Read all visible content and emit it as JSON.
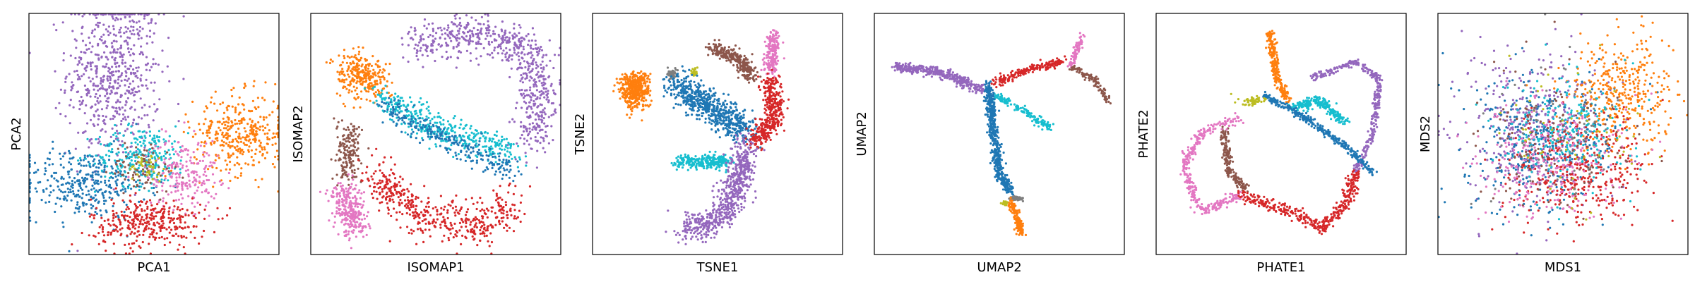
{
  "chart_data": [
    {
      "type": "scatter",
      "xlabel": "PCA1",
      "ylabel": "PCA2",
      "axis_ticks": false,
      "grid": false,
      "groups": [
        {
          "color": "#9467bd",
          "center": [
            -0.35,
            0.55
          ],
          "spread": [
            0.45,
            0.85
          ],
          "n": 620
        },
        {
          "color": "#1f77b4",
          "center": [
            -0.6,
            -0.45
          ],
          "spread": [
            0.6,
            0.35
          ],
          "n": 360
        },
        {
          "color": "#17becf",
          "center": [
            -0.1,
            -0.2
          ],
          "spread": [
            0.45,
            0.3
          ],
          "n": 260
        },
        {
          "color": "#ff7f0e",
          "center": [
            0.75,
            0.0
          ],
          "spread": [
            0.45,
            0.4
          ],
          "n": 360
        },
        {
          "color": "#e377c2",
          "center": [
            0.25,
            -0.35
          ],
          "spread": [
            0.35,
            0.35
          ],
          "n": 220
        },
        {
          "color": "#d62728",
          "center": [
            -0.05,
            -0.8
          ],
          "spread": [
            0.55,
            0.25
          ],
          "n": 340
        },
        {
          "color": "#8c564b",
          "center": [
            -0.1,
            -0.3
          ],
          "spread": [
            0.3,
            0.25
          ],
          "n": 80
        },
        {
          "color": "#bcbd22",
          "center": [
            -0.05,
            -0.3
          ],
          "spread": [
            0.2,
            0.15
          ],
          "n": 40
        }
      ]
    },
    {
      "type": "scatter",
      "xlabel": "ISOMAP1",
      "ylabel": "ISOMAP2",
      "axis_ticks": false,
      "grid": false,
      "groups": [
        {
          "color": "#9467bd",
          "path": [
            [
              -0.2,
              0.8
            ],
            [
              0.3,
              0.9
            ],
            [
              0.75,
              0.8
            ],
            [
              0.9,
              0.45
            ],
            [
              0.85,
              -0.1
            ]
          ],
          "width": 0.2,
          "n": 650
        },
        {
          "color": "#ff7f0e",
          "path": [
            [
              -0.75,
              0.55
            ],
            [
              -0.65,
              0.55
            ],
            [
              -0.55,
              0.45
            ]
          ],
          "width": 0.2,
          "n": 280
        },
        {
          "color": "#17becf",
          "path": [
            [
              -0.5,
              0.35
            ],
            [
              -0.1,
              0.1
            ],
            [
              0.35,
              -0.05
            ],
            [
              0.7,
              -0.2
            ]
          ],
          "width": 0.15,
          "n": 380
        },
        {
          "color": "#1f77b4",
          "path": [
            [
              -0.45,
              0.25
            ],
            [
              0.1,
              -0.05
            ],
            [
              0.7,
              -0.35
            ]
          ],
          "width": 0.12,
          "n": 260
        },
        {
          "color": "#8c564b",
          "path": [
            [
              -0.75,
              0.05
            ],
            [
              -0.75,
              -0.4
            ]
          ],
          "width": 0.12,
          "n": 170
        },
        {
          "color": "#e377c2",
          "path": [
            [
              -0.8,
              -0.5
            ],
            [
              -0.7,
              -0.85
            ]
          ],
          "width": 0.15,
          "n": 280
        },
        {
          "color": "#d62728",
          "path": [
            [
              -0.55,
              -0.35
            ],
            [
              -0.1,
              -0.75
            ],
            [
              0.4,
              -0.85
            ],
            [
              0.65,
              -0.6
            ]
          ],
          "width": 0.2,
          "n": 480
        }
      ]
    },
    {
      "type": "scatter",
      "xlabel": "TSNE1",
      "ylabel": "TSNE2",
      "axis_ticks": false,
      "grid": false,
      "groups": [
        {
          "color": "#ff7f0e",
          "center": [
            -0.72,
            0.4
          ],
          "spread": [
            0.14,
            0.18
          ],
          "n": 450
        },
        {
          "color": "#7f7f7f",
          "center": [
            -0.4,
            0.54
          ],
          "spread": [
            0.05,
            0.05
          ],
          "n": 40
        },
        {
          "color": "#bcbd22",
          "center": [
            -0.2,
            0.56
          ],
          "spread": [
            0.03,
            0.05
          ],
          "n": 25
        },
        {
          "color": "#1f77b4",
          "path": [
            [
              -0.35,
              0.45
            ],
            [
              0.0,
              0.2
            ],
            [
              0.25,
              0.02
            ]
          ],
          "width": 0.16,
          "n": 650
        },
        {
          "color": "#17becf",
          "path": [
            [
              -0.35,
              -0.25
            ],
            [
              0.1,
              -0.25
            ]
          ],
          "width": 0.07,
          "n": 260
        },
        {
          "color": "#8c564b",
          "path": [
            [
              -0.05,
              0.78
            ],
            [
              0.2,
              0.68
            ],
            [
              0.3,
              0.5
            ]
          ],
          "width": 0.07,
          "n": 280
        },
        {
          "color": "#e377c2",
          "path": [
            [
              0.5,
              0.9
            ],
            [
              0.45,
              0.55
            ]
          ],
          "width": 0.07,
          "n": 200
        },
        {
          "color": "#d62728",
          "path": [
            [
              0.45,
              0.5
            ],
            [
              0.5,
              0.15
            ],
            [
              0.3,
              -0.1
            ]
          ],
          "width": 0.1,
          "n": 380
        },
        {
          "color": "#9467bd",
          "path": [
            [
              0.25,
              -0.1
            ],
            [
              0.15,
              -0.5
            ],
            [
              0.0,
              -0.8
            ],
            [
              -0.3,
              -0.85
            ]
          ],
          "width": 0.14,
          "n": 650
        }
      ]
    },
    {
      "type": "scatter",
      "xlabel": "UMAP2",
      "ylabel": "UMAP2",
      "axis_ticks": false,
      "grid": false,
      "groups": [
        {
          "color": "#9467bd",
          "path": [
            [
              -0.9,
              0.6
            ],
            [
              -0.55,
              0.57
            ],
            [
              -0.15,
              0.4
            ]
          ],
          "width": 0.05,
          "n": 380
        },
        {
          "color": "#d62728",
          "path": [
            [
              -0.05,
              0.45
            ],
            [
              0.3,
              0.6
            ],
            [
              0.55,
              0.65
            ]
          ],
          "width": 0.04,
          "n": 200
        },
        {
          "color": "#e377c2",
          "path": [
            [
              0.72,
              0.9
            ],
            [
              0.62,
              0.6
            ]
          ],
          "width": 0.03,
          "n": 90
        },
        {
          "color": "#8c564b",
          "path": [
            [
              0.62,
              0.6
            ],
            [
              0.82,
              0.5
            ],
            [
              0.95,
              0.3
            ]
          ],
          "width": 0.03,
          "n": 110
        },
        {
          "color": "#17becf",
          "path": [
            [
              -0.05,
              0.35
            ],
            [
              0.15,
              0.25
            ],
            [
              0.45,
              0.05
            ]
          ],
          "width": 0.04,
          "n": 150
        },
        {
          "color": "#1f77b4",
          "path": [
            [
              -0.1,
              0.45
            ],
            [
              -0.05,
              0.0
            ],
            [
              0.0,
              -0.35
            ],
            [
              0.1,
              -0.55
            ]
          ],
          "width": 0.05,
          "n": 500
        },
        {
          "color": "#7f7f7f",
          "center": [
            0.15,
            -0.58
          ],
          "spread": [
            0.07,
            0.025
          ],
          "n": 60
        },
        {
          "color": "#bcbd22",
          "center": [
            0.05,
            -0.62
          ],
          "spread": [
            0.03,
            0.02
          ],
          "n": 25
        },
        {
          "color": "#ff7f0e",
          "path": [
            [
              0.1,
              -0.62
            ],
            [
              0.2,
              -0.9
            ]
          ],
          "width": 0.035,
          "n": 160
        }
      ]
    },
    {
      "type": "scatter",
      "xlabel": "PHATE1",
      "ylabel": "PHATE2",
      "axis_ticks": false,
      "grid": false,
      "groups": [
        {
          "color": "#ff7f0e",
          "path": [
            [
              -0.1,
              0.92
            ],
            [
              -0.05,
              0.55
            ],
            [
              0.05,
              0.3
            ]
          ],
          "width": 0.04,
          "n": 230
        },
        {
          "color": "#9467bd",
          "path": [
            [
              0.25,
              0.5
            ],
            [
              0.65,
              0.65
            ],
            [
              0.85,
              0.5
            ],
            [
              0.8,
              0.0
            ],
            [
              0.65,
              -0.35
            ]
          ],
          "width": 0.035,
          "n": 320
        },
        {
          "color": "#17becf",
          "path": [
            [
              0.1,
              0.25
            ],
            [
              0.35,
              0.3
            ],
            [
              0.55,
              0.1
            ]
          ],
          "width": 0.05,
          "n": 230
        },
        {
          "color": "#1f77b4",
          "path": [
            [
              -0.15,
              0.35
            ],
            [
              0.2,
              0.15
            ],
            [
              0.55,
              -0.1
            ],
            [
              0.8,
              -0.35
            ]
          ],
          "width": 0.035,
          "n": 300
        },
        {
          "color": "#bcbd22",
          "center": [
            -0.25,
            0.3
          ],
          "spread": [
            0.12,
            0.05
          ],
          "n": 60
        },
        {
          "color": "#8c564b",
          "path": [
            [
              -0.5,
              0.05
            ],
            [
              -0.45,
              -0.35
            ],
            [
              -0.3,
              -0.5
            ]
          ],
          "width": 0.04,
          "n": 180
        },
        {
          "color": "#e377c2",
          "path": [
            [
              -0.35,
              0.15
            ],
            [
              -0.7,
              0.0
            ],
            [
              -0.85,
              -0.3
            ],
            [
              -0.7,
              -0.7
            ],
            [
              -0.35,
              -0.55
            ]
          ],
          "width": 0.05,
          "n": 340
        },
        {
          "color": "#d62728",
          "path": [
            [
              -0.35,
              -0.55
            ],
            [
              0.1,
              -0.7
            ],
            [
              0.35,
              -0.85
            ],
            [
              0.55,
              -0.65
            ],
            [
              0.65,
              -0.35
            ]
          ],
          "width": 0.06,
          "n": 380
        }
      ]
    },
    {
      "type": "scatter",
      "xlabel": "MDS1",
      "ylabel": "MDS2",
      "axis_ticks": false,
      "grid": false,
      "groups": [
        {
          "color": "#9467bd",
          "center": [
            -0.25,
            0.1
          ],
          "spread": [
            0.7,
            0.8
          ],
          "n": 380
        },
        {
          "color": "#1f77b4",
          "center": [
            -0.2,
            -0.1
          ],
          "spread": [
            0.7,
            0.7
          ],
          "n": 360
        },
        {
          "color": "#ff7f0e",
          "center": [
            0.5,
            0.35
          ],
          "spread": [
            0.5,
            0.55
          ],
          "n": 380
        },
        {
          "color": "#d62728",
          "center": [
            0.15,
            -0.35
          ],
          "spread": [
            0.7,
            0.55
          ],
          "n": 380
        },
        {
          "color": "#e377c2",
          "center": [
            -0.1,
            -0.2
          ],
          "spread": [
            0.7,
            0.6
          ],
          "n": 280
        },
        {
          "color": "#17becf",
          "center": [
            0.05,
            0.05
          ],
          "spread": [
            0.6,
            0.6
          ],
          "n": 220
        },
        {
          "color": "#8c564b",
          "center": [
            -0.1,
            -0.05
          ],
          "spread": [
            0.7,
            0.7
          ],
          "n": 140
        },
        {
          "color": "#bcbd22",
          "center": [
            0.0,
            0.0
          ],
          "spread": [
            0.7,
            0.7
          ],
          "n": 60
        },
        {
          "color": "#7f7f7f",
          "center": [
            0.0,
            0.0
          ],
          "spread": [
            0.7,
            0.7
          ],
          "n": 60
        }
      ]
    }
  ]
}
